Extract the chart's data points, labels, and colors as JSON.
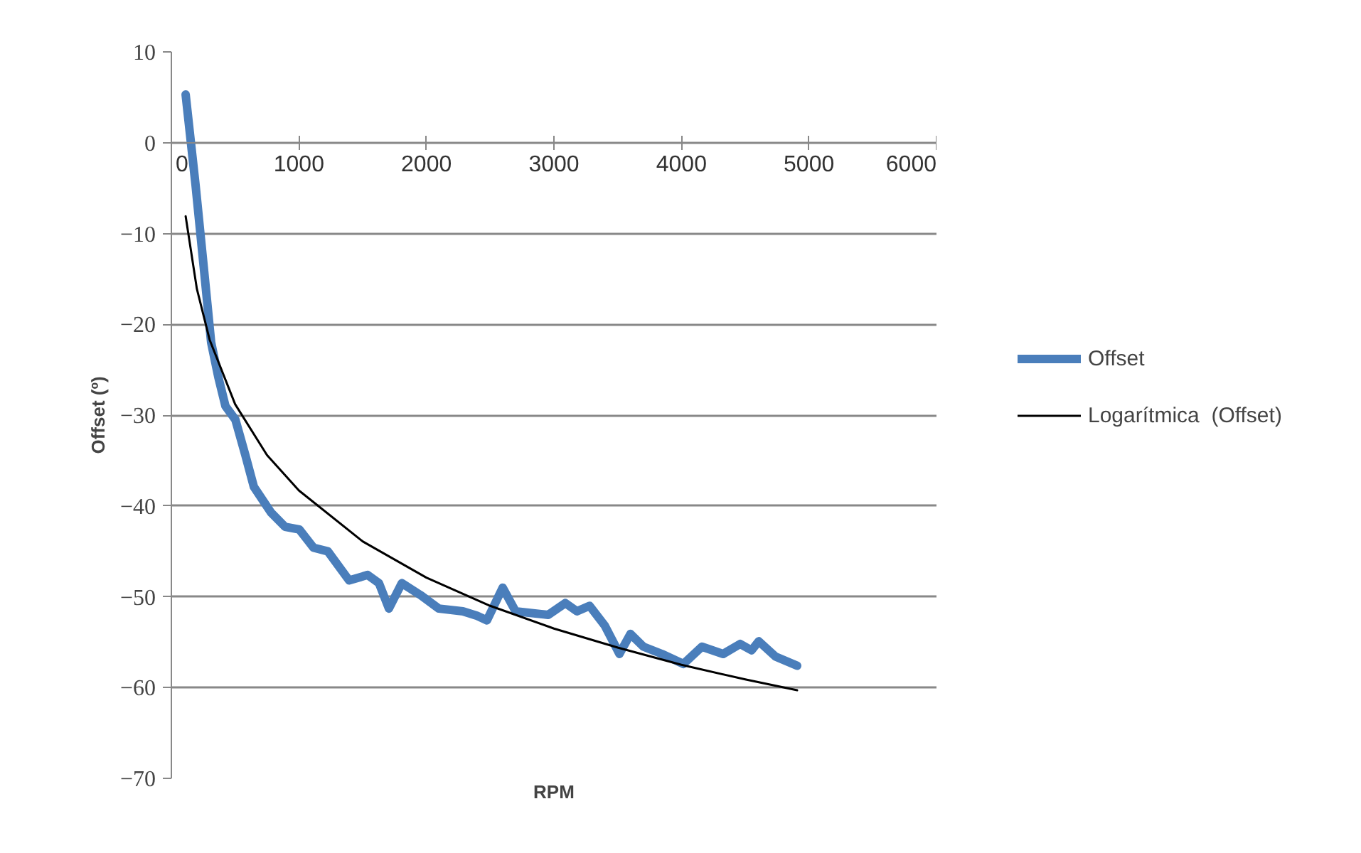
{
  "chart_data": {
    "type": "line",
    "xlabel": "RPM",
    "ylabel": "Offset (º)",
    "xlim": [
      0,
      6000
    ],
    "xticks": [
      0,
      1000,
      2000,
      3000,
      4000,
      5000,
      6000
    ],
    "ylim": [
      -70,
      10
    ],
    "yticks": [
      -70,
      -60,
      -50,
      -40,
      -30,
      -20,
      -10,
      0,
      10
    ],
    "grid": "y",
    "legend": "right",
    "marker": "none",
    "series": [
      {
        "name": "Offset",
        "color": "#4a7ebb",
        "x": [
          112,
          190,
          256,
          312,
          368,
          424,
          502,
          580,
          647,
          780,
          892,
          1004,
          1115,
          1227,
          1394,
          1539,
          1628,
          1706,
          1807,
          1952,
          2097,
          2286,
          2397,
          2475,
          2598,
          2699,
          2955,
          3089,
          3180,
          3280,
          3400,
          3514,
          3600,
          3702,
          3847,
          4015,
          4160,
          4327,
          4461,
          4550,
          4606,
          4739,
          4907
        ],
        "values": [
          5.3,
          -4.7,
          -14,
          -22,
          -25.8,
          -29,
          -30.5,
          -34.4,
          -37.9,
          -40.7,
          -42.3,
          -42.6,
          -44.6,
          -45,
          -48.2,
          -47.6,
          -48.5,
          -51.3,
          -48.5,
          -49.8,
          -51.3,
          -51.6,
          -52.1,
          -52.6,
          -49,
          -51.6,
          -52,
          -50.7,
          -51.6,
          -51,
          -53.2,
          -56.3,
          -54.1,
          -55.5,
          -56.3,
          -57.4,
          -55.5,
          -56.3,
          -55.2,
          -55.9,
          -54.9,
          -56.6,
          -57.6
        ]
      },
      {
        "name": "Logarítmica  (Offset)",
        "color": "#000000",
        "x": [
          112,
          200,
          300,
          500,
          750,
          1000,
          1500,
          2000,
          2500,
          3000,
          3500,
          4000,
          4500,
          4907
        ],
        "values": [
          -8.1,
          -16.1,
          -21.7,
          -28.8,
          -34.4,
          -38.3,
          -43.9,
          -47.9,
          -51.0,
          -53.5,
          -55.6,
          -57.5,
          -59.1,
          -60.3
        ]
      }
    ]
  }
}
